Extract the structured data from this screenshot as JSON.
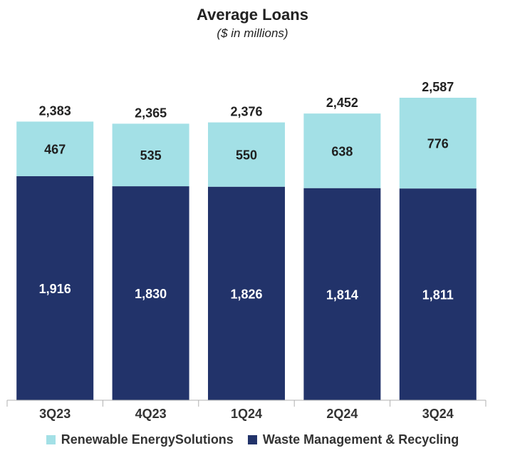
{
  "chart_data": {
    "type": "bar",
    "stacked": true,
    "title": "Average Loans",
    "subtitle": "($ in millions)",
    "categories": [
      "3Q23",
      "4Q23",
      "1Q24",
      "2Q24",
      "3Q24"
    ],
    "series": [
      {
        "name": "Waste Management & Recycling",
        "values": [
          1916,
          1830,
          1826,
          1814,
          1811
        ],
        "color": "#22336a",
        "label_color": "#ffffff"
      },
      {
        "name": "Renewable EnergySolutions",
        "values": [
          467,
          535,
          550,
          638,
          776
        ],
        "color": "#a3e0e6",
        "label_color": "#1f1f1f"
      }
    ],
    "totals": [
      2383,
      2365,
      2376,
      2452,
      2587
    ],
    "ylim": [
      0,
      2587
    ],
    "grid": false,
    "legend": "bottom"
  }
}
